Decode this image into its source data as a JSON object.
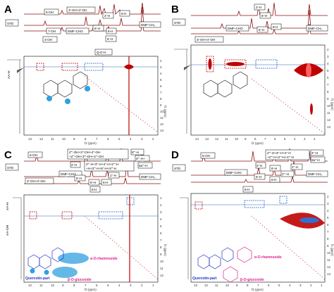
{
  "panels": [
    {
      "label": "A",
      "std": "STD",
      "aa": "AA-H",
      "boxes": [
        "5-OH",
        "3'-OH+4'-OH",
        "2'-H",
        "6-H",
        "7-OH",
        "DMF-CHO",
        "6'-H",
        "8-H",
        "3-OH",
        "5'-H",
        "DMF-CH₃",
        "Q-5'-H"
      ],
      "xticks": [
        "13",
        "12",
        "11",
        "10",
        "9",
        "8",
        "7",
        "6",
        "5",
        "4",
        "3",
        "2"
      ],
      "yticks": [
        "2",
        "3",
        "4",
        "5",
        "6",
        "7",
        "8",
        "9",
        "10",
        "11",
        "12",
        "13"
      ],
      "xlabel": "f2 (ppm)",
      "ylabel": "f1 (ppm)"
    },
    {
      "label": "B",
      "std": "STD",
      "boxes": [
        "2'-H",
        "6'-H",
        "DMF-CHO",
        "5'-H",
        "8-H",
        "3'-OH+4'-OH",
        "DMF-CH₃"
      ],
      "xticks": [
        "14",
        "13",
        "12",
        "11",
        "10",
        "9",
        "8",
        "7",
        "6",
        "5",
        "4",
        "3",
        "2"
      ],
      "yticks": [
        "2",
        "3",
        "4",
        "5",
        "6",
        "7",
        "8",
        "9",
        "10",
        "11",
        "12",
        "13"
      ],
      "xlabel": "f2 (ppm)",
      "ylabel": "f1 (ppm)"
    },
    {
      "label": "C",
      "std": "STD",
      "aa1": "AA-H",
      "aa2": "AA-OH",
      "boxes": [
        "5-OH",
        "2'''-OH+3''-OH+4''-OH",
        "+2'''-OH+3'''-OH+4'''-OH",
        "6'''-H",
        "2'-H",
        "4'''-H+",
        "2'''-H+3''-H+4''-H+2'''-H",
        "6a'''-H",
        "3'-OH+4'-OH",
        "DMF-CHO",
        "+H+3'''-H+5''-H+5'''-H",
        "1''-H",
        "6'-H",
        "5'-H",
        "6-H",
        "DMF-CH₃",
        "8-H"
      ],
      "quercetin": "Quercetin-part",
      "rhamnoside": "α-O-rhamnoside",
      "glucoside": "β-O-glucoside",
      "xticks": [
        "12",
        "11",
        "10",
        "9",
        "8",
        "7",
        "6",
        "5",
        "4",
        "3",
        "2",
        "1"
      ],
      "yticks": [
        "1",
        "2",
        "3",
        "4",
        "5",
        "6",
        "7",
        "8",
        "9",
        "10",
        "11",
        "12"
      ],
      "xlabel": "f2 (ppm)",
      "ylabel": "f1 (ppm)"
    },
    {
      "label": "D",
      "std": "STD",
      "boxes": [
        "5-OH",
        "2'''-H+3''-H+4''-H",
        "+2'''-H+3'''-H+4'''-H",
        "2'-H",
        "4''-H",
        "6a''-H",
        "DMF-CHO",
        "6'-H",
        "1'''-H",
        "5'-H",
        "DMF-CH₃",
        "1''-H",
        "6-H",
        "8-H"
      ],
      "quercetin": "Quercetin-part",
      "rhamnoside": "α-O-rhamnoside",
      "glucoside": "β-O-glucoside",
      "xticks": [
        "13",
        "12",
        "11",
        "10",
        "9",
        "8",
        "7",
        "6",
        "5",
        "4",
        "3",
        "2",
        "1"
      ],
      "yticks": [
        "2",
        "3",
        "4",
        "5",
        "6",
        "7",
        "8",
        "9",
        "10",
        "11",
        "12",
        "13"
      ],
      "xlabel": "f2 (ppm)",
      "ylabel": "f1 (ppm)"
    }
  ]
}
